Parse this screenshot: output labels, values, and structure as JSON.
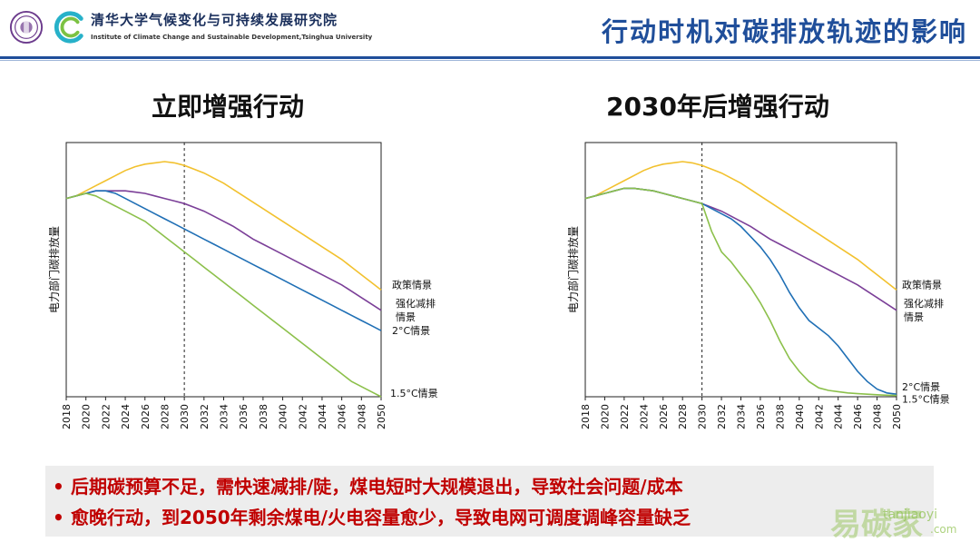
{
  "header": {
    "institute_cn": "清华大学气候变化与可持续发展研究院",
    "institute_en": "Institute of Climate Change and Sustainable Development,Tsinghua University",
    "slide_title": "行动时机对碳排放轨迹的影响",
    "emblem_icon": "tsinghua-emblem-icon",
    "logo_icon": "institute-logo-icon"
  },
  "colors": {
    "brand_blue": "#1f4e9a",
    "policy": "#f2c12e",
    "enhanced": "#7b3f98",
    "two_c": "#1f6fb5",
    "one_five_c": "#8cc04b",
    "bullet_red": "#c00000"
  },
  "chart_data": [
    {
      "type": "line",
      "title": "立即增强行动",
      "ylabel": "电力部门碳排放量",
      "xlabel": "",
      "categories": [
        "2018",
        "2020",
        "2022",
        "2024",
        "2026",
        "2028",
        "2030",
        "2032",
        "2034",
        "2036",
        "2038",
        "2040",
        "2042",
        "2044",
        "2046",
        "2048",
        "2050"
      ],
      "x": [
        2018,
        2019,
        2020,
        2021,
        2022,
        2023,
        2024,
        2025,
        2026,
        2027,
        2028,
        2029,
        2030,
        2031,
        2032,
        2033,
        2034,
        2035,
        2036,
        2037,
        2038,
        2039,
        2040,
        2041,
        2042,
        2043,
        2044,
        2045,
        2046,
        2047,
        2048,
        2049,
        2050
      ],
      "ylim": [
        0,
        1
      ],
      "marker_year": 2030,
      "series": [
        {
          "name": "政策情景",
          "label": "政策情景",
          "values": [
            0.78,
            0.79,
            0.81,
            0.83,
            0.85,
            0.87,
            0.89,
            0.905,
            0.915,
            0.92,
            0.925,
            0.92,
            0.91,
            0.895,
            0.88,
            0.86,
            0.84,
            0.815,
            0.79,
            0.765,
            0.74,
            0.715,
            0.69,
            0.665,
            0.64,
            0.615,
            0.59,
            0.565,
            0.54,
            0.51,
            0.48,
            0.45,
            0.42
          ]
        },
        {
          "name": "强化减排情景",
          "label_lines": [
            "强化减排",
            "情景"
          ],
          "values": [
            0.78,
            0.79,
            0.8,
            0.81,
            0.81,
            0.81,
            0.81,
            0.805,
            0.8,
            0.79,
            0.78,
            0.77,
            0.76,
            0.745,
            0.73,
            0.71,
            0.69,
            0.67,
            0.645,
            0.62,
            0.6,
            0.58,
            0.56,
            0.54,
            0.52,
            0.5,
            0.48,
            0.46,
            0.44,
            0.415,
            0.39,
            0.365,
            0.34
          ]
        },
        {
          "name": "2°C情景",
          "label": "2°C情景",
          "values": [
            0.78,
            0.79,
            0.8,
            0.81,
            0.81,
            0.8,
            0.78,
            0.76,
            0.74,
            0.72,
            0.7,
            0.68,
            0.66,
            0.64,
            0.62,
            0.6,
            0.58,
            0.56,
            0.54,
            0.52,
            0.5,
            0.48,
            0.46,
            0.44,
            0.42,
            0.4,
            0.38,
            0.36,
            0.34,
            0.32,
            0.3,
            0.28,
            0.26
          ]
        },
        {
          "name": "1.5°C情景",
          "label": "1.5°C情景",
          "values": [
            0.78,
            0.79,
            0.8,
            0.79,
            0.77,
            0.75,
            0.73,
            0.71,
            0.69,
            0.66,
            0.63,
            0.6,
            0.57,
            0.54,
            0.51,
            0.48,
            0.45,
            0.42,
            0.39,
            0.36,
            0.33,
            0.3,
            0.27,
            0.24,
            0.21,
            0.18,
            0.15,
            0.12,
            0.09,
            0.06,
            0.04,
            0.02,
            0.0
          ]
        }
      ]
    },
    {
      "type": "line",
      "title": "2030年后增强行动",
      "ylabel": "电力部门碳排放量",
      "xlabel": "",
      "categories": [
        "2018",
        "2020",
        "2022",
        "2024",
        "2026",
        "2028",
        "2030",
        "2032",
        "2034",
        "2036",
        "2038",
        "2040",
        "2042",
        "2044",
        "2046",
        "2048",
        "2050"
      ],
      "x": [
        2018,
        2019,
        2020,
        2021,
        2022,
        2023,
        2024,
        2025,
        2026,
        2027,
        2028,
        2029,
        2030,
        2031,
        2032,
        2033,
        2034,
        2035,
        2036,
        2037,
        2038,
        2039,
        2040,
        2041,
        2042,
        2043,
        2044,
        2045,
        2046,
        2047,
        2048,
        2049,
        2050
      ],
      "ylim": [
        0,
        1
      ],
      "marker_year": 2030,
      "series": [
        {
          "name": "政策情景",
          "label": "政策情景",
          "values": [
            0.78,
            0.79,
            0.81,
            0.83,
            0.85,
            0.87,
            0.89,
            0.905,
            0.915,
            0.92,
            0.925,
            0.92,
            0.91,
            0.895,
            0.88,
            0.86,
            0.84,
            0.815,
            0.79,
            0.765,
            0.74,
            0.715,
            0.69,
            0.665,
            0.64,
            0.615,
            0.59,
            0.565,
            0.54,
            0.51,
            0.48,
            0.45,
            0.42
          ]
        },
        {
          "name": "强化减排情景",
          "label_lines": [
            "强化减排",
            "情景"
          ],
          "values": [
            0.78,
            0.79,
            0.8,
            0.81,
            0.82,
            0.82,
            0.815,
            0.81,
            0.8,
            0.79,
            0.78,
            0.77,
            0.76,
            0.745,
            0.73,
            0.71,
            0.69,
            0.67,
            0.645,
            0.62,
            0.6,
            0.58,
            0.56,
            0.54,
            0.52,
            0.5,
            0.48,
            0.46,
            0.44,
            0.415,
            0.39,
            0.365,
            0.34
          ]
        },
        {
          "name": "2°C情景",
          "label": "2°C情景",
          "values": [
            0.78,
            0.79,
            0.8,
            0.81,
            0.82,
            0.82,
            0.815,
            0.81,
            0.8,
            0.79,
            0.78,
            0.77,
            0.76,
            0.74,
            0.72,
            0.7,
            0.67,
            0.63,
            0.59,
            0.54,
            0.48,
            0.41,
            0.35,
            0.3,
            0.27,
            0.24,
            0.2,
            0.15,
            0.1,
            0.06,
            0.03,
            0.015,
            0.01
          ]
        },
        {
          "name": "1.5°C情景",
          "label": "1.5°C情景",
          "values": [
            0.78,
            0.79,
            0.8,
            0.81,
            0.82,
            0.82,
            0.815,
            0.81,
            0.8,
            0.79,
            0.78,
            0.77,
            0.76,
            0.65,
            0.57,
            0.53,
            0.48,
            0.43,
            0.37,
            0.3,
            0.22,
            0.15,
            0.1,
            0.06,
            0.035,
            0.025,
            0.02,
            0.015,
            0.012,
            0.01,
            0.008,
            0.006,
            0.005
          ]
        }
      ]
    }
  ],
  "bullets": [
    "后期碳预算不足，需快速减排/陡，煤电短时大规模退出，导致社会问题/成本",
    "愈晚行动，到2050年剩余煤电/火电容量愈少，导致电网可调度调峰容量缺乏"
  ],
  "bullet_marker": "•",
  "watermark": {
    "cn": "易碳家",
    "url": "tanjiaoyi",
    "domain": ".com"
  }
}
